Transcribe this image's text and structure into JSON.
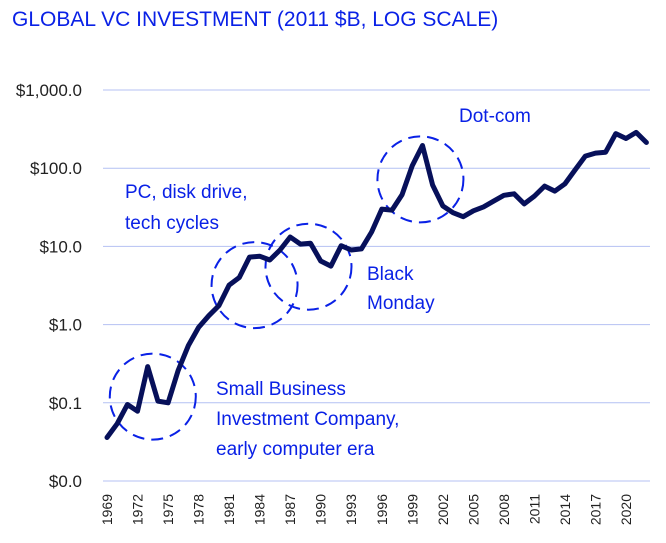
{
  "chart_data": {
    "type": "line",
    "title": "GLOBAL VC INVESTMENT (2011 $B, LOG SCALE)",
    "xlabel": "",
    "ylabel": "",
    "yscale": "log",
    "ylim": [
      0.01,
      1000
    ],
    "grid": true,
    "y_ticks": [
      {
        "value": 1000,
        "label": "$1,000.0"
      },
      {
        "value": 100,
        "label": "$100.0"
      },
      {
        "value": 10,
        "label": "$10.0"
      },
      {
        "value": 1,
        "label": "$1.0"
      },
      {
        "value": 0.1,
        "label": "$0.1"
      },
      {
        "value": 0.01,
        "label": "$0.0"
      }
    ],
    "x_ticks": [
      "1969",
      "1972",
      "1975",
      "1978",
      "1981",
      "1984",
      "1987",
      "1990",
      "1993",
      "1996",
      "1999",
      "2002",
      "2005",
      "2008",
      "2011",
      "2014",
      "2017",
      "2020"
    ],
    "xlim": [
      1969,
      2022
    ],
    "series": [
      {
        "name": "Global VC investment (2011 $B)",
        "color": "#07105a",
        "x": [
          1969,
          1970,
          1971,
          1972,
          1973,
          1974,
          1975,
          1976,
          1977,
          1978,
          1979,
          1980,
          1981,
          1982,
          1983,
          1984,
          1985,
          1986,
          1987,
          1988,
          1989,
          1990,
          1991,
          1992,
          1993,
          1994,
          1995,
          1996,
          1997,
          1998,
          1999,
          2000,
          2001,
          2002,
          2003,
          2004,
          2005,
          2006,
          2007,
          2008,
          2009,
          2010,
          2011,
          2012,
          2013,
          2014,
          2015,
          2016,
          2017,
          2018,
          2019,
          2020,
          2021,
          2022
        ],
        "values": [
          0.036,
          0.054,
          0.095,
          0.078,
          0.29,
          0.105,
          0.1,
          0.26,
          0.54,
          0.92,
          1.3,
          1.75,
          3.2,
          4.0,
          7.3,
          7.5,
          6.7,
          9.0,
          13.2,
          10.7,
          11.0,
          6.5,
          5.6,
          10.2,
          9.0,
          9.3,
          15.3,
          30,
          29,
          46,
          108,
          195,
          61,
          33,
          27,
          24,
          28.5,
          32,
          38,
          45,
          47,
          35,
          44,
          59,
          51,
          63,
          95,
          143,
          156,
          160,
          277,
          240,
          287,
          213
        ]
      }
    ],
    "annotations": [
      {
        "id": "sbic",
        "lines": [
          "Small Business",
          "Investment Company,",
          "early computer era"
        ],
        "circle_center": {
          "x": 1973.5,
          "y": 0.12
        }
      },
      {
        "id": "pc",
        "lines": [
          "PC, disk drive,",
          "tech cycles"
        ],
        "circle_center": {
          "x": 1983.5,
          "y": 3.2
        }
      },
      {
        "id": "black-monday",
        "lines": [
          "Black",
          "Monday"
        ],
        "circle_center": {
          "x": 1988.8,
          "y": 5.5
        }
      },
      {
        "id": "dotcom",
        "lines": [
          "Dot-com"
        ],
        "circle_center": {
          "x": 1999.8,
          "y": 72
        }
      }
    ],
    "accent_color": "#0a21e6"
  }
}
